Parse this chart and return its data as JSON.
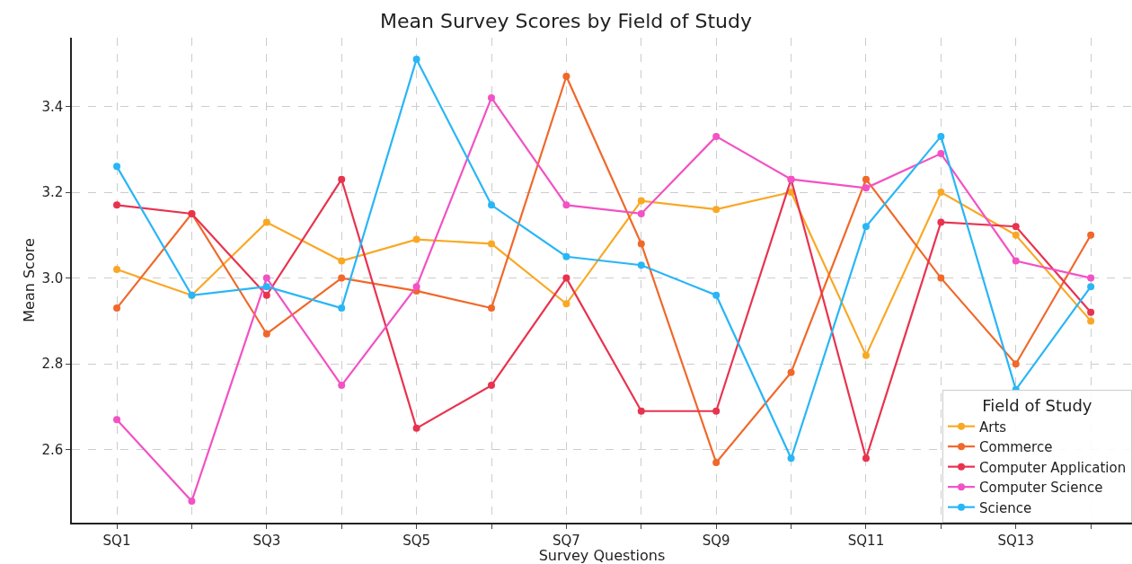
{
  "chart_data": {
    "type": "line",
    "title": "Mean Survey Scores by Field of Study",
    "xlabel": "Survey Questions",
    "ylabel": "Mean Score",
    "legend_title": "Field of Study",
    "categories": [
      "SQ1",
      null,
      "SQ3",
      null,
      "SQ5",
      null,
      "SQ7",
      null,
      "SQ9",
      null,
      "SQ11",
      null,
      "SQ13",
      null
    ],
    "series": [
      {
        "name": "Arts",
        "color": "#f9a825",
        "values": [
          3.02,
          2.96,
          3.13,
          3.04,
          3.09,
          3.08,
          2.94,
          3.18,
          3.16,
          3.2,
          2.82,
          3.2,
          3.1,
          2.9
        ]
      },
      {
        "name": "Commerce",
        "color": "#f0682a",
        "values": [
          2.93,
          3.15,
          2.87,
          3.0,
          2.97,
          2.93,
          3.47,
          3.08,
          2.57,
          2.78,
          3.23,
          3.0,
          2.8,
          3.1
        ]
      },
      {
        "name": "Computer Application",
        "color": "#e8334f",
        "values": [
          3.17,
          3.15,
          2.96,
          3.23,
          2.65,
          2.75,
          3.0,
          2.69,
          2.69,
          3.23,
          2.58,
          3.13,
          3.12,
          2.92
        ]
      },
      {
        "name": "Computer Science",
        "color": "#f252c4",
        "values": [
          2.67,
          2.48,
          3.0,
          2.75,
          2.98,
          3.42,
          3.17,
          3.15,
          3.33,
          3.23,
          3.21,
          3.29,
          3.04,
          3.0
        ]
      },
      {
        "name": "Science",
        "color": "#29b6f6",
        "values": [
          3.26,
          2.96,
          2.98,
          2.93,
          3.51,
          3.17,
          3.05,
          3.03,
          2.96,
          2.58,
          3.12,
          3.33,
          2.74,
          2.98
        ]
      }
    ],
    "ylim": [
      2.43,
      3.56
    ],
    "yticks": [
      {
        "value": 2.6,
        "label": "2.6"
      },
      {
        "value": 2.8,
        "label": "2.8"
      },
      {
        "value": 3.0,
        "label": "3.0"
      },
      {
        "value": 3.2,
        "label": "3.2"
      },
      {
        "value": 3.4,
        "label": "3.4"
      }
    ],
    "grid": true,
    "legend": "bottom right",
    "marker": "circle",
    "line_style": "solid"
  }
}
